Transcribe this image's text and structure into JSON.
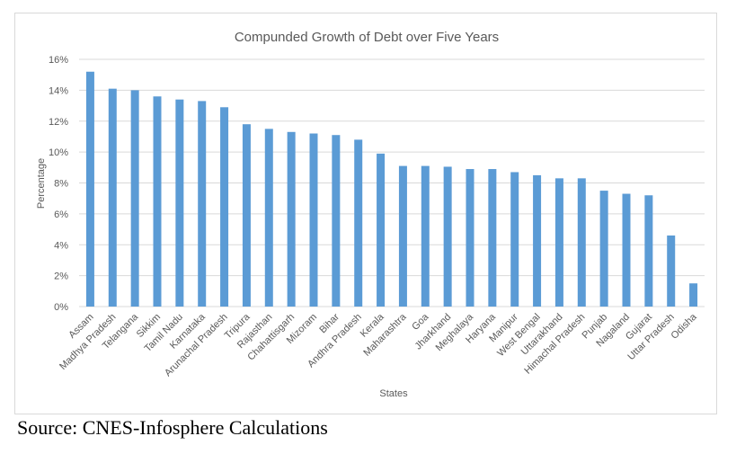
{
  "chart_data": {
    "type": "bar",
    "title": "Compunded Growth of Debt over Five Years",
    "xlabel": "States",
    "ylabel": "Percentage",
    "ylim": [
      0,
      16
    ],
    "yticks": [
      "0%",
      "2%",
      "4%",
      "6%",
      "8%",
      "10%",
      "12%",
      "14%",
      "16%"
    ],
    "grid": true,
    "bar_color": "#5b9bd5",
    "categories": [
      "Assam",
      "Madhya Pradesh",
      "Telangana",
      "Sikkim",
      "Tamil Nadu",
      "Karnataka",
      "Arunachal Pradesh",
      "Tripura",
      "Rajasthan",
      "Chahattisgarh",
      "Mizoram",
      "Bihar",
      "Andhra Pradesh",
      "Kerala",
      "Maharashtra",
      "Goa",
      "Jharkhand",
      "Meghalaya",
      "Haryana",
      "Manipur",
      "West Bengal",
      "Uttarakhand",
      "Himachal Pradesh",
      "Punjab",
      "Nagaland",
      "Gujarat",
      "Uttar Pradesh",
      "Odisha"
    ],
    "values": [
      15.2,
      14.1,
      14.0,
      13.6,
      13.4,
      13.3,
      12.9,
      11.8,
      11.5,
      11.3,
      11.2,
      11.1,
      10.8,
      9.9,
      9.1,
      9.1,
      9.05,
      8.9,
      8.9,
      8.7,
      8.5,
      8.3,
      8.3,
      7.5,
      7.3,
      7.2,
      4.6,
      1.5
    ]
  },
  "source": "Source: CNES-Infosphere Calculations"
}
